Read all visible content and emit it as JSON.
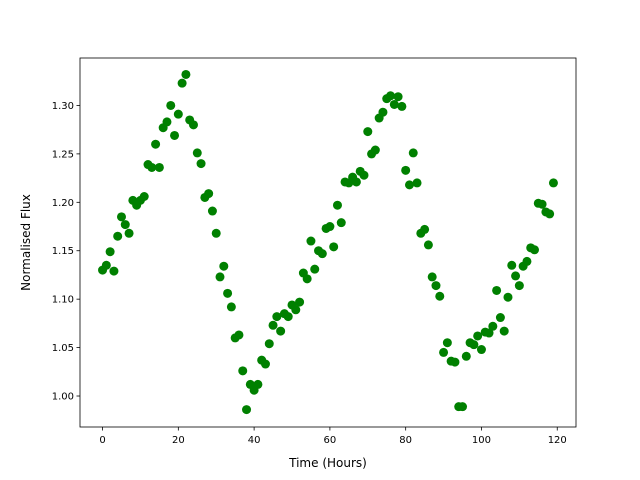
{
  "chart_data": {
    "type": "scatter",
    "x_label": "Time (Hours)",
    "y_label": "Normalised Flux",
    "x": [
      0,
      1,
      2,
      3,
      4,
      5,
      6,
      7,
      8,
      9,
      10,
      11,
      12,
      13,
      14,
      15,
      16,
      17,
      18,
      19,
      20,
      21,
      22,
      23,
      24,
      25,
      26,
      27,
      28,
      29,
      30,
      31,
      32,
      33,
      34,
      35,
      36,
      37,
      38,
      39,
      40,
      41,
      42,
      43,
      44,
      45,
      46,
      47,
      48,
      49,
      50,
      51,
      52,
      53,
      54,
      55,
      56,
      57,
      58,
      59,
      60,
      61,
      62,
      63,
      64,
      65,
      66,
      67,
      68,
      69,
      70,
      71,
      72,
      73,
      74,
      75,
      76,
      77,
      78,
      79,
      80,
      81,
      82,
      83,
      84,
      85,
      86,
      87,
      88,
      89,
      90,
      91,
      92,
      93,
      94,
      95,
      96,
      97,
      98,
      99,
      100,
      101,
      102,
      103,
      104,
      105,
      106,
      107,
      108,
      109,
      110,
      111,
      112,
      113,
      114,
      115,
      116,
      117,
      118,
      119
    ],
    "series": [
      {
        "color": "#008000",
        "values": [
          1.13,
          1.135,
          1.149,
          1.129,
          1.165,
          1.185,
          1.177,
          1.168,
          1.202,
          1.197,
          1.202,
          1.206,
          1.239,
          1.236,
          1.26,
          1.236,
          1.277,
          1.283,
          1.3,
          1.269,
          1.291,
          1.323,
          1.332,
          1.285,
          1.28,
          1.251,
          1.24,
          1.205,
          1.209,
          1.191,
          1.168,
          1.123,
          1.134,
          1.106,
          1.092,
          1.06,
          1.063,
          1.026,
          0.986,
          1.012,
          1.006,
          1.012,
          1.037,
          1.033,
          1.054,
          1.073,
          1.082,
          1.067,
          1.085,
          1.082,
          1.094,
          1.089,
          1.097,
          1.127,
          1.121,
          1.16,
          1.131,
          1.15,
          1.147,
          1.173,
          1.175,
          1.154,
          1.197,
          1.179,
          1.221,
          1.22,
          1.226,
          1.221,
          1.232,
          1.228,
          1.273,
          1.25,
          1.254,
          1.287,
          1.293,
          1.307,
          1.31,
          1.301,
          1.309,
          1.299,
          1.233,
          1.218,
          1.251,
          1.22,
          1.168,
          1.172,
          1.156,
          1.123,
          1.114,
          1.103,
          1.045,
          1.055,
          1.036,
          1.035,
          0.989,
          0.989,
          1.041,
          1.055,
          1.053,
          1.062,
          1.048,
          1.066,
          1.065,
          1.072,
          1.109,
          1.081,
          1.067,
          1.102,
          1.135,
          1.124,
          1.114,
          1.134,
          1.139,
          1.153,
          1.151,
          1.199,
          1.198,
          1.19,
          1.188,
          1.22
        ]
      }
    ],
    "xlim": [
      -5.95,
      124.95
    ],
    "ylim": [
      0.968,
      1.349
    ],
    "xticks": [
      0,
      20,
      40,
      60,
      80,
      100,
      120
    ],
    "yticks": [
      {
        "value": 1,
        "label": "1.00"
      },
      1.05,
      {
        "value": 1.1,
        "label": "1.10"
      },
      1.15,
      {
        "value": 1.2,
        "label": "1.20"
      },
      1.25,
      {
        "value": 1.3,
        "label": "1.30"
      }
    ]
  }
}
